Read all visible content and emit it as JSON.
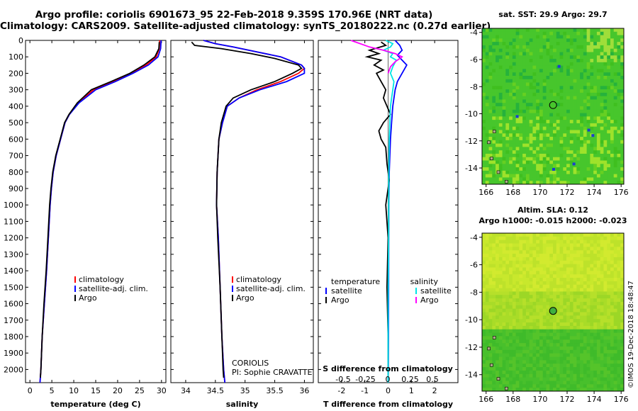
{
  "header": {
    "line1": "Argo profile: coriolis 6901673_95 22-Feb-2018 9.359S 170.96E (NRT data)",
    "line2": "Climatology: CARS2009. Satellite-adjusted climatology: synTS_20180222.nc (0.27d earlier)"
  },
  "colors": {
    "climatology": "#ff0000",
    "satellite": "#0000ff",
    "argo": "#000000",
    "sat_salinity": "#00e5e5",
    "argo_salinity": "#ff00ff"
  },
  "chart_data": [
    {
      "name": "temperature",
      "type": "line",
      "xlabel": "temperature (deg C)",
      "xlim": [
        -1,
        31
      ],
      "ylim": [
        2080,
        0
      ],
      "xticks": [
        0,
        5,
        10,
        15,
        20,
        25,
        30
      ],
      "yticks": [
        0,
        100,
        200,
        300,
        400,
        500,
        600,
        700,
        800,
        900,
        1000,
        1100,
        1200,
        1300,
        1400,
        1500,
        1600,
        1700,
        1800,
        1900,
        2000
      ],
      "legend": [
        "climatology",
        "satellite-adj. clim.",
        "Argo"
      ],
      "series": [
        {
          "name": "climatology",
          "color": "#ff0000",
          "points": [
            [
              29.6,
              0
            ],
            [
              29.5,
              50
            ],
            [
              28.8,
              100
            ],
            [
              26.5,
              150
            ],
            [
              23,
              200
            ],
            [
              19,
              250
            ],
            [
              14.5,
              300
            ],
            [
              11,
              380
            ],
            [
              9,
              450
            ],
            [
              8,
              500
            ],
            [
              7,
              600
            ],
            [
              6,
              700
            ],
            [
              5.3,
              800
            ],
            [
              4.9,
              900
            ],
            [
              4.6,
              1000
            ],
            [
              4.2,
              1200
            ],
            [
              3.8,
              1400
            ],
            [
              3.3,
              1600
            ],
            [
              2.8,
              1800
            ],
            [
              2.5,
              2000
            ],
            [
              2.3,
              2080
            ]
          ]
        },
        {
          "name": "satellite-adj. clim.",
          "color": "#0000ff",
          "points": [
            [
              29.9,
              0
            ],
            [
              29.8,
              50
            ],
            [
              29.2,
              100
            ],
            [
              27,
              150
            ],
            [
              23.5,
              200
            ],
            [
              19.5,
              250
            ],
            [
              15,
              300
            ],
            [
              11.2,
              380
            ],
            [
              9,
              450
            ],
            [
              8,
              500
            ],
            [
              7,
              600
            ],
            [
              6,
              700
            ],
            [
              5.3,
              800
            ],
            [
              4.9,
              900
            ],
            [
              4.6,
              1000
            ],
            [
              4.2,
              1200
            ],
            [
              3.8,
              1400
            ],
            [
              3.3,
              1600
            ],
            [
              2.8,
              1800
            ],
            [
              2.5,
              2000
            ],
            [
              2.3,
              2080
            ]
          ]
        },
        {
          "name": "Argo",
          "color": "#000000",
          "points": [
            [
              29.5,
              10
            ],
            [
              29.4,
              50
            ],
            [
              28.5,
              100
            ],
            [
              26,
              150
            ],
            [
              22.8,
              200
            ],
            [
              18.5,
              250
            ],
            [
              14,
              300
            ],
            [
              10.8,
              380
            ],
            [
              8.9,
              450
            ],
            [
              7.9,
              500
            ],
            [
              6.9,
              600
            ],
            [
              5.9,
              700
            ],
            [
              5.2,
              800
            ],
            [
              4.8,
              900
            ],
            [
              4.5,
              1000
            ],
            [
              4.1,
              1200
            ],
            [
              3.7,
              1400
            ],
            [
              3.2,
              1600
            ],
            [
              2.8,
              1800
            ],
            [
              2.5,
              2000
            ],
            [
              2.4,
              2050
            ]
          ]
        }
      ]
    },
    {
      "name": "salinity",
      "type": "line",
      "xlabel": "salinity",
      "xlim": [
        33.75,
        36.15
      ],
      "ylim": [
        2080,
        0
      ],
      "xticks": [
        34,
        34.5,
        35,
        35.5,
        36
      ],
      "xticklabels": [
        "34",
        "34.5",
        "35",
        "35.5",
        "36"
      ],
      "legend": [
        "climatology",
        "satellite-adj. clim.",
        "Argo"
      ],
      "annotation": [
        "CORIOLIS",
        "PI: Sophie CRAVATTE"
      ],
      "series": [
        {
          "name": "climatology",
          "color": "#ff0000",
          "points": [
            [
              34.3,
              0
            ],
            [
              34.5,
              20
            ],
            [
              34.8,
              40
            ],
            [
              35.2,
              70
            ],
            [
              35.6,
              100
            ],
            [
              35.95,
              150
            ],
            [
              36.0,
              170
            ],
            [
              35.9,
              200
            ],
            [
              35.6,
              250
            ],
            [
              35.2,
              300
            ],
            [
              34.9,
              350
            ],
            [
              34.7,
              400
            ],
            [
              34.62,
              500
            ],
            [
              34.56,
              600
            ],
            [
              34.53,
              800
            ],
            [
              34.52,
              1000
            ],
            [
              34.55,
              1200
            ],
            [
              34.58,
              1500
            ],
            [
              34.61,
              1800
            ],
            [
              34.64,
              2000
            ],
            [
              34.66,
              2080
            ]
          ]
        },
        {
          "name": "satellite-adj. clim.",
          "color": "#0000ff",
          "points": [
            [
              34.3,
              0
            ],
            [
              34.5,
              20
            ],
            [
              34.8,
              40
            ],
            [
              35.2,
              70
            ],
            [
              35.6,
              100
            ],
            [
              35.95,
              150
            ],
            [
              36.0,
              170
            ],
            [
              36.0,
              200
            ],
            [
              35.7,
              250
            ],
            [
              35.25,
              300
            ],
            [
              34.9,
              350
            ],
            [
              34.7,
              400
            ],
            [
              34.62,
              500
            ],
            [
              34.56,
              600
            ],
            [
              34.53,
              800
            ],
            [
              34.52,
              1000
            ],
            [
              34.55,
              1200
            ],
            [
              34.58,
              1500
            ],
            [
              34.61,
              1800
            ],
            [
              34.64,
              2000
            ],
            [
              34.66,
              2080
            ]
          ]
        },
        {
          "name": "Argo",
          "color": "#000000",
          "points": [
            [
              34.1,
              10
            ],
            [
              34.15,
              30
            ],
            [
              34.6,
              50
            ],
            [
              35.1,
              80
            ],
            [
              35.5,
              110
            ],
            [
              35.9,
              150
            ],
            [
              35.95,
              170
            ],
            [
              35.8,
              200
            ],
            [
              35.5,
              250
            ],
            [
              35.1,
              300
            ],
            [
              34.8,
              350
            ],
            [
              34.68,
              400
            ],
            [
              34.6,
              500
            ],
            [
              34.56,
              600
            ],
            [
              34.53,
              800
            ],
            [
              34.52,
              1000
            ],
            [
              34.54,
              1200
            ],
            [
              34.58,
              1500
            ],
            [
              34.61,
              1800
            ],
            [
              34.63,
              2000
            ],
            [
              34.64,
              2050
            ]
          ]
        }
      ]
    },
    {
      "name": "difference",
      "type": "line",
      "xlabel": "T difference from climatology",
      "xlabel2": "S difference from climatology",
      "xlim": [
        -3.0,
        3.0
      ],
      "ylim": [
        2080,
        0
      ],
      "xticks": [
        -2,
        -1,
        0,
        1,
        2
      ],
      "xticklabels": [
        "-2",
        "-1",
        "0",
        "1",
        "2"
      ],
      "sticks": [
        "-0.5",
        "-0.25",
        "0",
        "0.25",
        "0.5"
      ],
      "legend_temperature": [
        "temperature",
        "satellite",
        "Argo"
      ],
      "legend_salinity": [
        "salinity",
        "satellite",
        "Argo"
      ],
      "series": [
        {
          "name": "T satellite",
          "color": "#0000ff",
          "points": [
            [
              0.3,
              0
            ],
            [
              0.5,
              30
            ],
            [
              0.6,
              60
            ],
            [
              0.4,
              90
            ],
            [
              0.6,
              120
            ],
            [
              0.8,
              150
            ],
            [
              0.6,
              200
            ],
            [
              0.4,
              250
            ],
            [
              0.3,
              300
            ],
            [
              0.2,
              400
            ],
            [
              0.15,
              500
            ],
            [
              0.1,
              600
            ],
            [
              0.05,
              800
            ],
            [
              0.03,
              1000
            ],
            [
              0.02,
              1500
            ],
            [
              0.01,
              2000
            ],
            [
              0.0,
              2080
            ]
          ]
        },
        {
          "name": "T Argo",
          "color": "#000000",
          "points": [
            [
              -0.3,
              10
            ],
            [
              -0.1,
              30
            ],
            [
              -0.8,
              60
            ],
            [
              -0.4,
              80
            ],
            [
              -0.9,
              100
            ],
            [
              -0.3,
              120
            ],
            [
              -0.6,
              150
            ],
            [
              -0.2,
              180
            ],
            [
              -0.5,
              200
            ],
            [
              -0.3,
              250
            ],
            [
              -0.1,
              300
            ],
            [
              -0.2,
              350
            ],
            [
              -0.05,
              400
            ],
            [
              0.1,
              450
            ],
            [
              -0.2,
              500
            ],
            [
              -0.4,
              550
            ],
            [
              -0.3,
              600
            ],
            [
              -0.1,
              650
            ],
            [
              -0.05,
              750
            ],
            [
              0.05,
              850
            ],
            [
              -0.1,
              1000
            ],
            [
              0.0,
              1200
            ],
            [
              -0.05,
              1500
            ],
            [
              0.0,
              1800
            ],
            [
              0.0,
              2050
            ]
          ]
        },
        {
          "name": "S satellite",
          "color": "#00e5e5",
          "points": [
            [
              -0.1,
              0
            ],
            [
              0.2,
              20
            ],
            [
              0.1,
              40
            ],
            [
              -0.2,
              60
            ],
            [
              0.2,
              80
            ],
            [
              0.1,
              100
            ],
            [
              0.35,
              120
            ],
            [
              0.2,
              160
            ],
            [
              0.1,
              200
            ],
            [
              0.25,
              250
            ],
            [
              0.2,
              300
            ],
            [
              0.1,
              400
            ],
            [
              0.05,
              600
            ],
            [
              0.03,
              800
            ],
            [
              0.02,
              1200
            ],
            [
              0.0,
              1600
            ],
            [
              0.0,
              2080
            ]
          ]
        },
        {
          "name": "S Argo",
          "color": "#ff00ff",
          "points": [
            [
              -1.6,
              0
            ],
            [
              -1.2,
              20
            ],
            [
              -0.8,
              40
            ],
            [
              -0.2,
              60
            ],
            [
              0.3,
              80
            ],
            [
              0.6,
              100
            ],
            [
              0.3,
              130
            ],
            [
              0.1,
              160
            ],
            [
              0.0,
              200
            ]
          ]
        }
      ]
    },
    {
      "name": "sst_map",
      "type": "heatmap",
      "title": "sat. SST: 29.9 Argo: 29.7",
      "xticks": [
        166,
        168,
        170,
        172,
        174,
        176
      ],
      "yticks": [
        -4,
        -6,
        -8,
        -10,
        -12,
        -14
      ],
      "xlim": [
        165.7,
        176.2
      ],
      "ylim": [
        -15.2,
        -3.7
      ],
      "marker": {
        "lon": 170.96,
        "lat": -9.359
      }
    },
    {
      "name": "sla_map",
      "type": "heatmap",
      "title": "Altim. SLA: 0.12",
      "subtitle": "Argo h1000: -0.015 h2000: -0.023",
      "xticks": [
        166,
        168,
        170,
        172,
        174,
        176
      ],
      "yticks": [
        -4,
        -6,
        -8,
        -10,
        -12,
        -14
      ],
      "xlim": [
        165.7,
        176.2
      ],
      "ylim": [
        -15.2,
        -3.7
      ],
      "marker": {
        "lon": 170.96,
        "lat": -9.359
      }
    }
  ],
  "footer": {
    "stamp": "©IMOS 19-Dec-2018 18:48:47"
  }
}
